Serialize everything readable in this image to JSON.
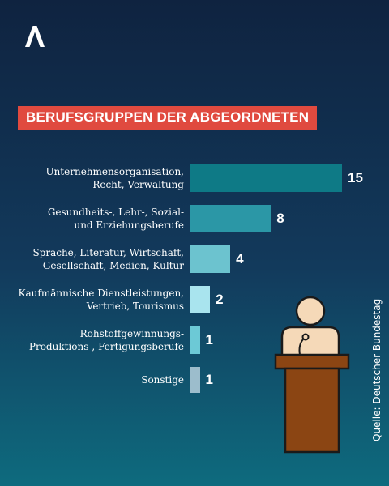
{
  "icons": {
    "logo": "a-chevron-logo-icon",
    "illustration": "speaker-at-podium-icon"
  },
  "colors": {
    "title_bg": "#e04a3f",
    "bars": [
      "#0e7a86",
      "#2b97a6",
      "#6cc3cf",
      "#a9e4ee",
      "#6cc9d6",
      "#9cbdcc"
    ],
    "podium": "#8b4513"
  },
  "chart_data": {
    "type": "bar",
    "orientation": "horizontal",
    "title": "BERUFSGRUPPEN DER ABGEORDNETEN",
    "categories": [
      [
        "Unternehmensorganisation,",
        "Recht, Verwaltung"
      ],
      [
        "Gesundheits-, Lehr-, Sozial-",
        "und Erziehungsberufe"
      ],
      [
        "Sprache, Literatur, Wirtschaft,",
        "Gesellschaft, Medien, Kultur"
      ],
      [
        "Kaufmännische Dienstleistungen,",
        "Vertrieb, Tourismus"
      ],
      [
        "Rohstoffgewinnungs-",
        "Produktions-, Fertigungsberufe"
      ],
      [
        "Sonstige"
      ]
    ],
    "values": [
      15,
      8,
      4,
      2,
      1,
      1
    ],
    "value_labels": [
      "15",
      "8",
      "4",
      "2",
      "1",
      "1"
    ],
    "xlim": [
      0,
      15
    ],
    "grid": false,
    "source": "Quelle: Deutscher Bundestag"
  }
}
